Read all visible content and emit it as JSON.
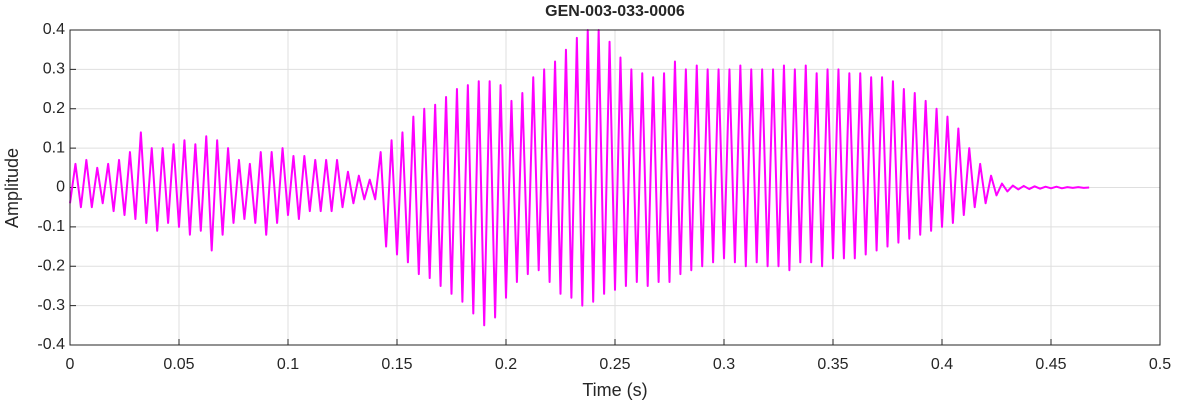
{
  "chart_data": {
    "type": "line",
    "title": "GEN-003-033-0006",
    "x_label": "Time (s)",
    "y_label": "Amplitude",
    "xlim": [
      0,
      0.5
    ],
    "ylim": [
      -0.4,
      0.4
    ],
    "xticks": [
      0,
      0.05,
      0.1,
      0.15,
      0.2,
      0.25,
      0.3,
      0.35,
      0.4,
      0.45,
      0.5
    ],
    "yticks": [
      -0.4,
      -0.3,
      -0.2,
      -0.1,
      0,
      0.1,
      0.2,
      0.3,
      0.4
    ],
    "grid": true,
    "x": [
      0,
      0.0025,
      0.005,
      0.0075,
      0.01,
      0.0125,
      0.015,
      0.0175,
      0.02,
      0.0225,
      0.025,
      0.0275,
      0.03,
      0.0325,
      0.035,
      0.0375,
      0.04,
      0.0425,
      0.045,
      0.0475,
      0.05,
      0.0525,
      0.055,
      0.0575,
      0.06,
      0.0625,
      0.065,
      0.0675,
      0.07,
      0.0725,
      0.075,
      0.0775,
      0.08,
      0.0825,
      0.085,
      0.0875,
      0.09,
      0.0925,
      0.095,
      0.0975,
      0.1,
      0.1025,
      0.105,
      0.1075,
      0.11,
      0.1125,
      0.115,
      0.1175,
      0.12,
      0.1225,
      0.125,
      0.1275,
      0.13,
      0.1325,
      0.135,
      0.1375,
      0.14,
      0.1425,
      0.145,
      0.1475,
      0.15,
      0.1525,
      0.155,
      0.1575,
      0.16,
      0.1625,
      0.165,
      0.1675,
      0.17,
      0.1725,
      0.175,
      0.1775,
      0.18,
      0.1825,
      0.185,
      0.1875,
      0.19,
      0.1925,
      0.195,
      0.1975,
      0.2,
      0.2025,
      0.205,
      0.2075,
      0.21,
      0.2125,
      0.215,
      0.2175,
      0.22,
      0.2225,
      0.225,
      0.2275,
      0.23,
      0.2325,
      0.235,
      0.2375,
      0.24,
      0.2425,
      0.245,
      0.2475,
      0.25,
      0.2525,
      0.255,
      0.2575,
      0.26,
      0.2625,
      0.265,
      0.2675,
      0.27,
      0.2725,
      0.275,
      0.2775,
      0.28,
      0.2825,
      0.285,
      0.2875,
      0.29,
      0.2925,
      0.295,
      0.2975,
      0.3,
      0.3025,
      0.305,
      0.3075,
      0.31,
      0.3125,
      0.315,
      0.3175,
      0.32,
      0.3225,
      0.325,
      0.3275,
      0.33,
      0.3325,
      0.335,
      0.3375,
      0.34,
      0.3425,
      0.345,
      0.3475,
      0.35,
      0.3525,
      0.355,
      0.3575,
      0.36,
      0.3625,
      0.365,
      0.3675,
      0.37,
      0.3725,
      0.375,
      0.3775,
      0.38,
      0.3825,
      0.385,
      0.3875,
      0.39,
      0.3925,
      0.395,
      0.3975,
      0.4,
      0.4025,
      0.405,
      0.4075,
      0.41,
      0.4125,
      0.415,
      0.4175,
      0.42,
      0.4225,
      0.425,
      0.4275,
      0.43,
      0.4325,
      0.435,
      0.4375,
      0.44,
      0.4425,
      0.445,
      0.4475,
      0.45,
      0.4525,
      0.455,
      0.4575,
      0.46,
      0.4625,
      0.465,
      0.4675
    ],
    "series": [
      {
        "color": "#ff00ff",
        "values": [
          -0.04,
          0.06,
          -0.05,
          0.07,
          -0.05,
          0.05,
          -0.04,
          0.06,
          -0.06,
          0.07,
          -0.07,
          0.09,
          -0.08,
          0.14,
          -0.09,
          0.1,
          -0.11,
          0.1,
          -0.09,
          0.11,
          -0.1,
          0.12,
          -0.12,
          0.11,
          -0.11,
          0.13,
          -0.16,
          0.12,
          -0.12,
          0.1,
          -0.09,
          0.07,
          -0.08,
          0.06,
          -0.09,
          0.09,
          -0.12,
          0.09,
          -0.09,
          0.1,
          -0.07,
          0.08,
          -0.08,
          0.08,
          -0.06,
          0.07,
          -0.06,
          0.07,
          -0.06,
          0.07,
          -0.05,
          0.04,
          -0.04,
          0.03,
          -0.03,
          0.02,
          -0.03,
          0.09,
          -0.15,
          0.12,
          -0.17,
          0.14,
          -0.19,
          0.18,
          -0.22,
          0.2,
          -0.23,
          0.21,
          -0.25,
          0.23,
          -0.27,
          0.25,
          -0.29,
          0.26,
          -0.32,
          0.27,
          -0.35,
          0.27,
          -0.33,
          0.26,
          -0.28,
          0.22,
          -0.24,
          0.24,
          -0.22,
          0.28,
          -0.21,
          0.3,
          -0.24,
          0.32,
          -0.27,
          0.35,
          -0.28,
          0.38,
          -0.3,
          0.4,
          -0.29,
          0.4,
          -0.27,
          0.37,
          -0.26,
          0.33,
          -0.25,
          0.3,
          -0.24,
          0.29,
          -0.25,
          0.28,
          -0.24,
          0.29,
          -0.24,
          0.32,
          -0.22,
          0.3,
          -0.21,
          0.31,
          -0.2,
          0.3,
          -0.19,
          0.3,
          -0.18,
          0.3,
          -0.19,
          0.31,
          -0.2,
          0.3,
          -0.19,
          0.3,
          -0.2,
          0.3,
          -0.2,
          0.31,
          -0.21,
          0.3,
          -0.19,
          0.31,
          -0.19,
          0.29,
          -0.2,
          0.3,
          -0.18,
          0.3,
          -0.18,
          0.29,
          -0.18,
          0.29,
          -0.17,
          0.28,
          -0.16,
          0.28,
          -0.15,
          0.27,
          -0.14,
          0.25,
          -0.13,
          0.24,
          -0.12,
          0.22,
          -0.11,
          0.2,
          -0.1,
          0.18,
          -0.09,
          0.15,
          -0.07,
          0.1,
          -0.05,
          0.06,
          -0.04,
          0.03,
          -0.02,
          0.01,
          -0.01,
          0.005,
          -0.005,
          0.004,
          -0.004,
          0.003,
          -0.003,
          0.002,
          -0.002,
          0.002,
          -0.002,
          0.001,
          -0.001,
          0.001,
          -0.001,
          0
        ]
      }
    ]
  }
}
